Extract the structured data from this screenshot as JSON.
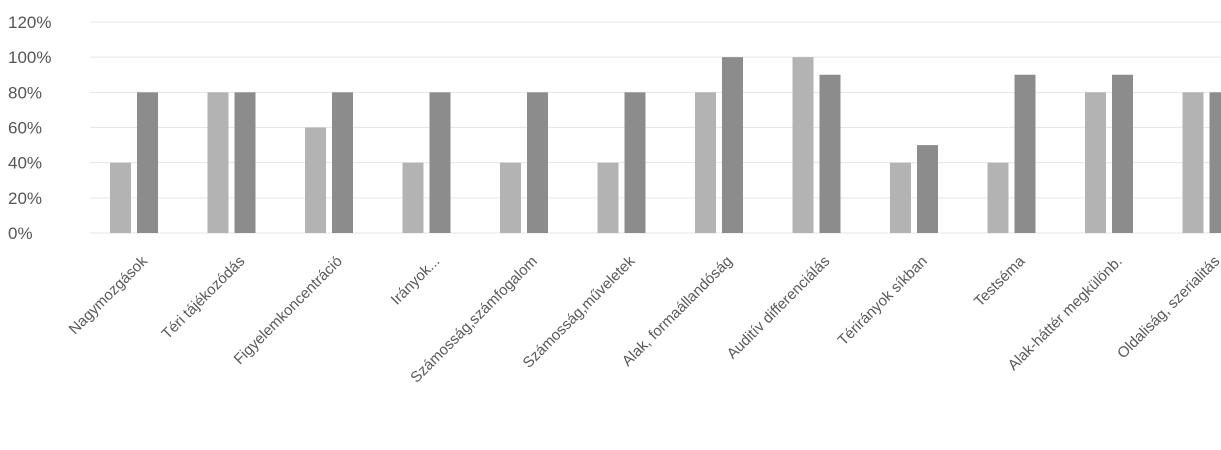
{
  "chart_data": {
    "type": "bar",
    "categories": [
      "Nagymozgások",
      "Téri tájékozódás",
      "Figyelemkoncentráció",
      "Irányok...",
      "Számosság,számfogalom",
      "Számosság,műveletek",
      "Alak, formaállandóság",
      "Auditív differenciálás",
      "Térirányok síkban",
      "Testséma",
      "Alak-háttér megkülönb.",
      "Oldaliság, szerialitás"
    ],
    "series": [
      {
        "values": [
          40,
          80,
          60,
          40,
          40,
          40,
          80,
          100,
          40,
          40,
          80,
          80
        ]
      },
      {
        "values": [
          80,
          80,
          80,
          80,
          80,
          80,
          100,
          90,
          50,
          90,
          90,
          80
        ]
      }
    ],
    "y_ticks": [
      "0%",
      "20%",
      "40%",
      "60%",
      "80%",
      "100%",
      "120%"
    ],
    "ylim": [
      0,
      120
    ],
    "grid": true,
    "colors": [
      "#b3b3b3",
      "#8c8c8c"
    ]
  }
}
